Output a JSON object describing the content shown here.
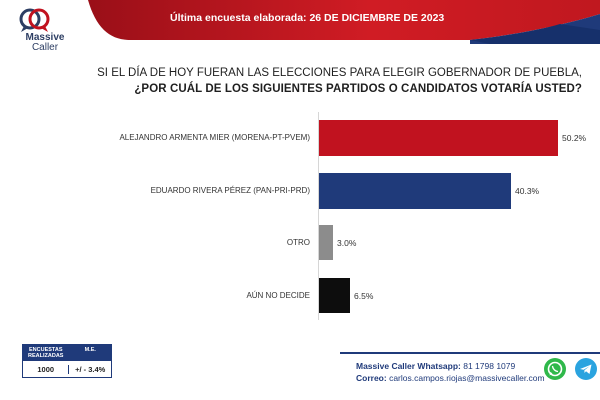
{
  "brand": {
    "name": "Massive",
    "sub": "Caller"
  },
  "header": {
    "title": "Última encuesta elaborada: 26 DE DICIEMBRE DE 2023"
  },
  "question": {
    "line1": "SI EL DÍA DE HOY FUERAN LAS ELECCIONES PARA ELEGIR GOBERNADOR DE PUEBLA,",
    "line2": "¿POR CUÁL DE LOS SIGUIENTES PARTIDOS O CANDIDATOS VOTARÍA USTED?"
  },
  "chart_data": {
    "type": "bar",
    "orientation": "horizontal",
    "categories": [
      "ALEJANDRO ARMENTA MIER (MORENA-PT-PVEM)",
      "EDUARDO RIVERA PÉREZ (PAN-PRI-PRD)",
      "OTRO",
      "AÚN NO DECIDE"
    ],
    "values": [
      50.2,
      40.3,
      3.0,
      6.5
    ],
    "value_labels": [
      "50.2%",
      "40.3%",
      "3.0%",
      "6.5%"
    ],
    "colors": [
      "#c1121f",
      "#1f3a7a",
      "#8c8c8c",
      "#0d0d0d"
    ],
    "xlim": [
      0,
      50.2
    ],
    "grid": false
  },
  "table": {
    "header1": "ENCUESTAS REALIZADAS",
    "header2": "M.E.",
    "value1": "1000",
    "value2": "+/ - 3.4%"
  },
  "contact": {
    "whatsapp_label": "Massive Caller Whatsapp:",
    "whatsapp_number": " 81 1798 1079",
    "email_label": "Correo:",
    "email": " carlos.campos.riojas@massivecaller.com"
  },
  "icons": {
    "whatsapp": "whatsapp-icon",
    "telegram": "telegram-icon"
  }
}
